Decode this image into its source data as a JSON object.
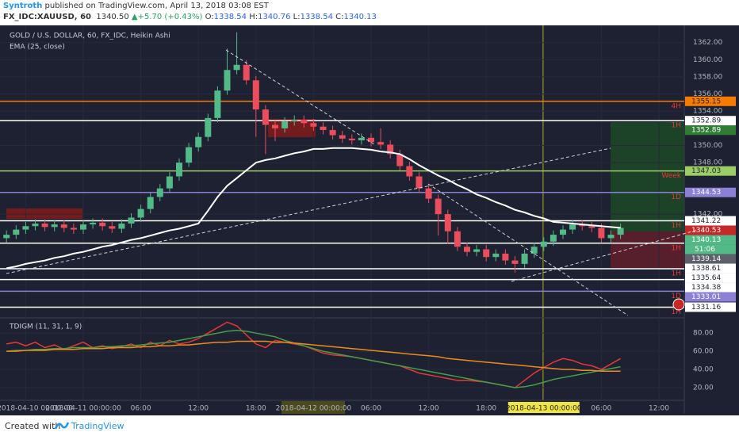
{
  "header": {
    "author": "Syntroth",
    "published": " published on TradingView.com, April 13, 2018 03:08 EST",
    "symbol": "FX_IDC:XAUUSD, 60",
    "last": "1340.50",
    "change": "+5.70 (+0.43%)",
    "ohlc": [
      {
        "key": "O:",
        "value": "1338.54"
      },
      {
        "key": "H:",
        "value": "1340.76"
      },
      {
        "key": "L:",
        "value": "1338.54"
      },
      {
        "key": "C:",
        "value": "1340.13"
      }
    ]
  },
  "footer": {
    "created": "Created with",
    "brand": "TradingView"
  },
  "chart_data": [
    {
      "type": "candlestick",
      "title": "GOLD / U.S. DOLLAR, 60, FX_IDC, Heikin Ashi",
      "categories": [
        null,
        null,
        "2018-04-10 00:00:00",
        null,
        null,
        null,
        null,
        null,
        "2018-04-11 00:00:00",
        null,
        null,
        null,
        null,
        null,
        "06:00",
        null,
        null,
        null,
        null,
        null,
        "12:00",
        null,
        null,
        null,
        null,
        null,
        "18:00",
        null,
        null,
        null,
        null,
        null,
        "2018-04-12 00:00:00",
        null,
        null,
        null,
        null,
        null,
        "06:00",
        null,
        null,
        null,
        null,
        null,
        "12:00",
        null,
        null,
        null,
        null,
        null,
        "18:00",
        null,
        null,
        null,
        null,
        null,
        "2018-04-13 00:00:00",
        null,
        null,
        null,
        null,
        null,
        "06:00",
        null,
        null,
        null,
        null,
        null,
        "12:00",
        null,
        null
      ],
      "open": [
        1339.2,
        1339.6,
        1340.2,
        1340.6,
        1340.9,
        1340.5,
        1340.8,
        1340.4,
        1340.2,
        1340.8,
        1341.0,
        1340.6,
        1340.3,
        1340.9,
        1341.6,
        1342.6,
        1344.0,
        1345.0,
        1346.4,
        1348.0,
        1349.8,
        1351.0,
        1353.2,
        1356.4,
        1358.8,
        1359.4,
        1357.6,
        1354.2,
        1352.4,
        1352.0,
        1352.8,
        1353.0,
        1352.6,
        1352.2,
        1351.8,
        1351.2,
        1350.8,
        1350.6,
        1350.9,
        1350.4,
        1350.1,
        1349.0,
        1347.6,
        1346.4,
        1345.0,
        1343.8,
        1342.0,
        1340.0,
        1338.2,
        1337.6,
        1337.9,
        1337.0,
        1337.4,
        1336.6,
        1336.2,
        1337.4,
        1338.2,
        1338.8,
        1339.6,
        1340.2,
        1340.8,
        1340.6,
        1340.4,
        1339.2,
        1339.6,
        null,
        null,
        null,
        null,
        null,
        null
      ],
      "high": [
        1340.1,
        1340.7,
        1341.1,
        1341.4,
        1341.4,
        1341.3,
        1341.3,
        1340.9,
        1341.3,
        1341.5,
        1341.5,
        1341.1,
        1341.4,
        1342.1,
        1343.1,
        1344.5,
        1345.5,
        1346.9,
        1348.5,
        1350.3,
        1351.5,
        1353.7,
        1356.9,
        1361.3,
        1363.2,
        1359.9,
        1358.1,
        1354.7,
        1352.9,
        1353.3,
        1353.5,
        1353.5,
        1353.1,
        1352.7,
        1352.3,
        1351.7,
        1351.3,
        1351.4,
        1351.4,
        1352.0,
        1350.6,
        1349.5,
        1348.1,
        1346.9,
        1345.5,
        1344.3,
        1342.5,
        1340.5,
        1338.7,
        1338.4,
        1338.4,
        1337.9,
        1337.9,
        1337.1,
        1337.9,
        1338.7,
        1339.3,
        1340.1,
        1340.7,
        1341.3,
        1341.3,
        1341.1,
        1340.9,
        1340.1,
        1340.9,
        null,
        null,
        null,
        null,
        null,
        null
      ],
      "low": [
        1338.7,
        1339.1,
        1339.7,
        1340.1,
        1340.0,
        1340.0,
        1339.9,
        1339.7,
        1339.7,
        1340.3,
        1340.1,
        1339.8,
        1339.8,
        1340.4,
        1341.1,
        1342.1,
        1343.5,
        1344.5,
        1345.9,
        1347.5,
        1349.3,
        1350.5,
        1352.7,
        1355.9,
        1358.3,
        1357.1,
        1351.0,
        1349.0,
        1350.5,
        1351.5,
        1352.3,
        1352.1,
        1351.7,
        1351.3,
        1350.7,
        1350.3,
        1350.1,
        1350.1,
        1349.9,
        1349.6,
        1348.5,
        1347.1,
        1345.9,
        1344.5,
        1343.3,
        1339.5,
        1338.5,
        1337.7,
        1337.1,
        1337.1,
        1336.5,
        1336.5,
        1336.1,
        1335.2,
        1335.7,
        1336.9,
        1337.7,
        1338.3,
        1339.1,
        1339.7,
        1340.1,
        1339.9,
        1338.7,
        1338.7,
        1339.1,
        null,
        null,
        null,
        null,
        null,
        null
      ],
      "close": [
        1339.6,
        1340.2,
        1340.6,
        1340.9,
        1340.5,
        1340.8,
        1340.4,
        1340.2,
        1340.8,
        1341.0,
        1340.6,
        1340.3,
        1340.9,
        1341.6,
        1342.6,
        1344.0,
        1345.0,
        1346.4,
        1348.0,
        1349.8,
        1351.0,
        1353.2,
        1356.4,
        1358.8,
        1359.4,
        1357.6,
        1354.2,
        1352.4,
        1352.0,
        1352.8,
        1353.0,
        1352.6,
        1352.2,
        1351.8,
        1351.2,
        1350.8,
        1350.6,
        1350.9,
        1350.4,
        1350.1,
        1349.0,
        1347.6,
        1346.4,
        1345.0,
        1343.8,
        1342.0,
        1340.0,
        1338.2,
        1337.6,
        1337.9,
        1337.0,
        1337.4,
        1336.6,
        1336.2,
        1337.4,
        1338.2,
        1338.8,
        1339.6,
        1340.2,
        1340.8,
        1340.6,
        1340.4,
        1339.2,
        1339.6,
        1340.4,
        null,
        null,
        null,
        null,
        null,
        null
      ],
      "up_color": "#53b987",
      "down_color": "#eb4d5c",
      "series": [
        {
          "name": "EMA (25, close)",
          "color": "#ffffff",
          "values": [
            1335.7,
            1335.9,
            1336.2,
            1336.4,
            1336.6,
            1336.9,
            1337.1,
            1337.4,
            1337.6,
            1337.9,
            1338.2,
            1338.4,
            1338.7,
            1339.0,
            1339.2,
            1339.5,
            1339.8,
            1340.1,
            1340.3,
            1340.6,
            1340.9,
            1342.4,
            1344.0,
            1345.3,
            1346.2,
            1347.1,
            1348.0,
            1348.3,
            1348.5,
            1348.8,
            1349.1,
            1349.3,
            1349.6,
            1349.6,
            1349.7,
            1349.7,
            1349.7,
            1349.6,
            1349.5,
            1349.3,
            1349.2,
            1349.0,
            1348.4,
            1347.7,
            1347.1,
            1346.5,
            1346.0,
            1345.4,
            1344.9,
            1344.3,
            1343.9,
            1343.4,
            1343.0,
            1342.5,
            1342.2,
            1341.8,
            1341.5,
            1341.1,
            1341.0,
            1340.9,
            1340.8,
            1340.7,
            1340.6,
            1340.5,
            1340.4,
            null,
            null,
            null,
            null,
            null,
            null
          ]
        }
      ],
      "ylim": [
        1330,
        1364
      ],
      "yticks": [
        {
          "value": 1362,
          "label": "1362.00"
        },
        {
          "value": 1360,
          "label": "1360.00"
        },
        {
          "value": 1358,
          "label": "1358.00"
        },
        {
          "value": 1356,
          "label": "1356.00"
        },
        {
          "value": 1354,
          "label": "1354.00"
        },
        {
          "value": 1350,
          "label": "1350.00"
        },
        {
          "value": 1348,
          "label": "1348.00"
        },
        {
          "value": 1342,
          "label": "1342.00"
        }
      ],
      "grid": true,
      "levels": [
        {
          "price": 1355.15,
          "color": "#f57c00",
          "tag": "4H"
        },
        {
          "price": 1352.89,
          "color": "#ffffff",
          "tag": "1H"
        },
        {
          "price": 1347.03,
          "color": "#9ccc65",
          "tag": "Week"
        },
        {
          "price": 1344.53,
          "color": "#8c7fd6",
          "tag": "1D"
        },
        {
          "price": 1341.22,
          "color": "#ffffff",
          "tag": "1H"
        },
        {
          "price": 1338.61,
          "color": "#ffffff",
          "tag": "1H"
        },
        {
          "price": 1335.64,
          "color": "#ffffff",
          "tag": "1H"
        },
        {
          "price": 1334.38,
          "color": "#ffffff"
        },
        {
          "price": 1333.01,
          "color": "#8c7fd6",
          "tag": "1D"
        },
        {
          "price": 1331.16,
          "color": "#ffffff",
          "tag": "1H"
        }
      ],
      "price_marks": [
        {
          "price": 1352.89,
          "color": "#2e7d32"
        },
        {
          "price": 1340.53,
          "color": "#c62828"
        },
        {
          "price": 1340.13,
          "color": "#53b987"
        },
        {
          "price": 1339.14,
          "color": "#5d606b"
        }
      ],
      "countdown": "51:06"
    },
    {
      "type": "line",
      "title": "TDIGM (11, 31, 1, 9)",
      "series": [
        {
          "color": "#e53935",
          "values": [
            68,
            70,
            66,
            70,
            64,
            67,
            62,
            66,
            70,
            64,
            66,
            63,
            65,
            68,
            64,
            70,
            66,
            72,
            68,
            70,
            74,
            80,
            86,
            92,
            88,
            78,
            68,
            64,
            72,
            70,
            68,
            66,
            62,
            58,
            56,
            55,
            54,
            52,
            50,
            48,
            46,
            44,
            40,
            36,
            34,
            32,
            30,
            28,
            28,
            27,
            26,
            24,
            22,
            20,
            28,
            36,
            42,
            48,
            52,
            50,
            46,
            44,
            40,
            46,
            52,
            null,
            null,
            null,
            null,
            null,
            null
          ]
        },
        {
          "color": "#43a047",
          "values": [
            60,
            61,
            61,
            62,
            62,
            63,
            63,
            64,
            64,
            64,
            65,
            65,
            66,
            66,
            67,
            68,
            69,
            70,
            72,
            74,
            76,
            78,
            80,
            82,
            83,
            82,
            80,
            78,
            76,
            72,
            69,
            66,
            63,
            60,
            58,
            56,
            54,
            52,
            50,
            48,
            46,
            44,
            42,
            40,
            38,
            36,
            34,
            32,
            30,
            28,
            26,
            24,
            22,
            20,
            21,
            23,
            26,
            29,
            31,
            33,
            35,
            37,
            39,
            41,
            43,
            null,
            null,
            null,
            null,
            null,
            null
          ]
        },
        {
          "color": "#ef8a1c",
          "values": [
            60,
            60,
            61,
            61,
            61,
            62,
            62,
            62,
            63,
            63,
            63,
            64,
            64,
            64,
            65,
            65,
            66,
            66,
            67,
            67,
            68,
            69,
            70,
            70,
            71,
            71,
            71,
            71,
            70,
            70,
            69,
            68,
            67,
            66,
            65,
            64,
            63,
            62,
            61,
            60,
            59,
            58,
            57,
            56,
            55,
            54,
            52,
            51,
            50,
            49,
            48,
            47,
            46,
            45,
            44,
            43,
            42,
            41,
            40,
            40,
            39,
            39,
            38,
            38,
            38,
            null,
            null,
            null,
            null,
            null,
            null
          ]
        }
      ],
      "ylim": [
        6,
        95
      ],
      "yticks": [
        {
          "value": 80,
          "label": "80.00"
        },
        {
          "value": 60,
          "label": "60.00"
        },
        {
          "value": 40,
          "label": "40.00"
        },
        {
          "value": 20,
          "label": "20.00"
        }
      ]
    }
  ]
}
